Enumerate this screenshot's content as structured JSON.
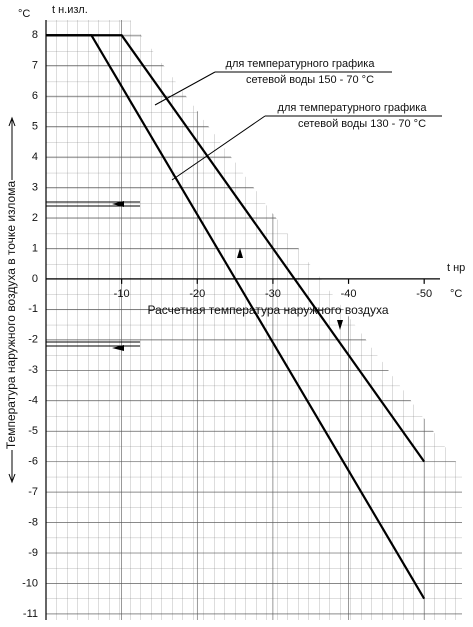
{
  "chart_data": {
    "type": "line",
    "y_unit": "°C",
    "y_symbol": "t н.изл.",
    "x_symbol": "t нр",
    "x_unit": "°C",
    "y_title": "Температура наружного воздуха в точке излома",
    "x_title": "Расчетная температура наружного воздуха",
    "xlim": [
      0,
      -55
    ],
    "xticks": [
      -10,
      -20,
      -30,
      -40,
      -50
    ],
    "ylim": [
      -11.2,
      8.5
    ],
    "yticks": [
      8,
      7,
      6,
      5,
      4,
      3,
      2,
      1,
      0,
      -1,
      -2,
      -3,
      -4,
      -5,
      -6,
      -7,
      -8,
      -9,
      -10,
      -11
    ],
    "grid": true,
    "series": [
      {
        "label": [
          "для температурного графика",
          "сетевой воды 150 - 70 °C"
        ],
        "color": "#000000",
        "x": [
          0,
          -10,
          -50
        ],
        "values": [
          8,
          8,
          -6
        ]
      },
      {
        "label": [
          "для температурного графика",
          "сетевой воды 130 - 70 °C"
        ],
        "color": "#000000",
        "x": [
          0,
          -6,
          -50
        ],
        "values": [
          8,
          8,
          -10.5
        ]
      }
    ]
  }
}
